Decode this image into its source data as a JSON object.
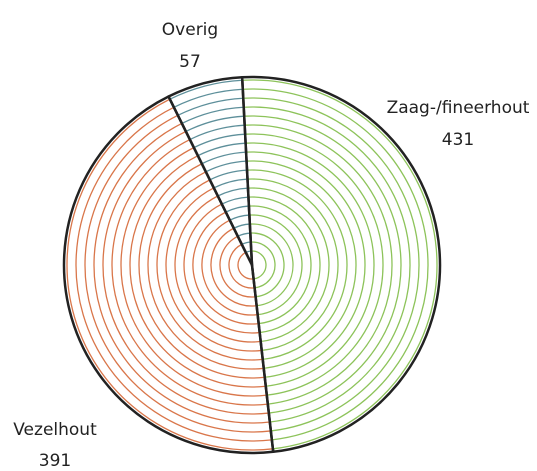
{
  "chart_data": {
    "type": "pie",
    "categories": [
      "Zaag-/fineerhout",
      "Vezelhout",
      "Overig"
    ],
    "values": [
      431,
      391,
      57
    ],
    "colors": [
      "#8dc35a",
      "#d9764a",
      "#5d8f9a"
    ]
  }
}
